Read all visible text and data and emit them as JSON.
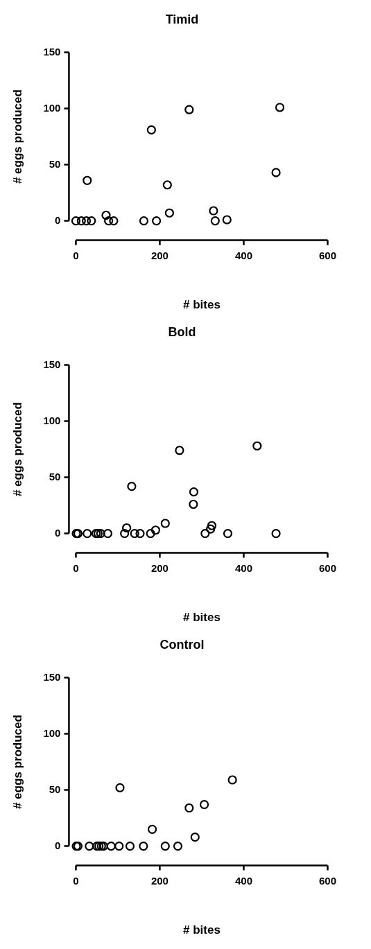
{
  "chart_data": [
    {
      "type": "scatter",
      "title": "Timid",
      "xlabel": "# bites",
      "ylabel": "# eggs produced",
      "marker": "circle",
      "color": "#000000",
      "x": [
        0,
        13,
        25,
        37,
        27,
        72,
        78,
        90,
        162,
        180,
        192,
        218,
        223,
        270,
        328,
        332,
        360,
        477,
        486
      ],
      "values": [
        0,
        0,
        0,
        0,
        36,
        5,
        0,
        0,
        0,
        81,
        0,
        32,
        7,
        99,
        9,
        0,
        1,
        43,
        101
      ],
      "xlim": [
        0,
        600
      ],
      "xticks": [
        0,
        200,
        400,
        600
      ],
      "ylim": [
        0,
        150
      ],
      "yticks": [
        0,
        50,
        100,
        150
      ]
    },
    {
      "type": "scatter",
      "title": "Bold",
      "xlabel": "# bites",
      "ylabel": "# eggs produced",
      "marker": "circle",
      "color": "#000000",
      "x": [
        1,
        5,
        27,
        48,
        53,
        59,
        76,
        116,
        121,
        133,
        140,
        153,
        178,
        190,
        213,
        247,
        281,
        280,
        308,
        321,
        324,
        362,
        432,
        477
      ],
      "values": [
        0,
        0,
        0,
        0,
        0,
        0,
        0,
        0,
        5,
        42,
        0,
        0,
        0,
        3,
        9,
        74,
        37,
        26,
        0,
        4,
        7,
        0,
        78,
        0
      ],
      "xlim": [
        0,
        600
      ],
      "xticks": [
        0,
        200,
        400,
        600
      ],
      "ylim": [
        0,
        150
      ],
      "yticks": [
        0,
        50,
        100,
        150
      ]
    },
    {
      "type": "scatter",
      "title": "Control",
      "xlabel": "# bites",
      "ylabel": "# eggs produced",
      "marker": "circle",
      "color": "#000000",
      "x": [
        1,
        5,
        32,
        50,
        55,
        61,
        66,
        84,
        103,
        105,
        129,
        161,
        182,
        213,
        243,
        270,
        284,
        306,
        373
      ],
      "values": [
        0,
        0,
        0,
        0,
        0,
        0,
        0,
        0,
        0,
        52,
        0,
        0,
        15,
        0,
        0,
        34,
        8,
        37,
        59
      ],
      "xlim": [
        0,
        600
      ],
      "xticks": [
        0,
        200,
        400,
        600
      ],
      "ylim": [
        0,
        150
      ],
      "yticks": [
        0,
        50,
        100,
        150
      ]
    }
  ]
}
